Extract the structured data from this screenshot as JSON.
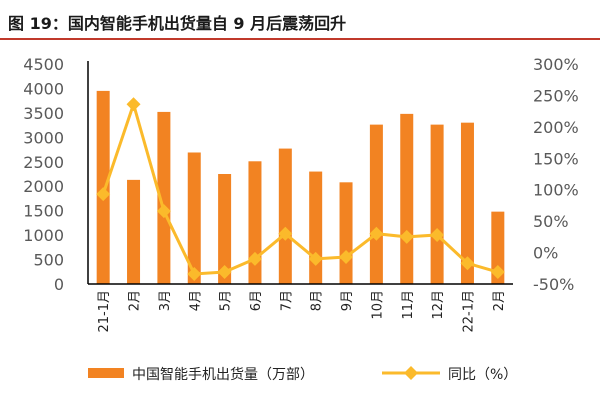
{
  "title": "图 19：国内智能手机出货量自 9 月后震荡回升",
  "chart_data": {
    "type": "bar+line",
    "categories": [
      "21-1月",
      "2月",
      "3月",
      "4月",
      "5月",
      "6月",
      "7月",
      "8月",
      "9月",
      "10月",
      "11月",
      "12月",
      "22-1月",
      "2月"
    ],
    "series": [
      {
        "name": "中国智能手机出货量（万部）",
        "type": "bar",
        "axis": "left",
        "color": "#F28322",
        "values": [
          3950,
          2130,
          3520,
          2690,
          2250,
          2510,
          2770,
          2300,
          2080,
          3260,
          3480,
          3260,
          3300,
          1480
        ]
      },
      {
        "name": "同比（%）",
        "type": "line",
        "axis": "right",
        "color": "#FBBA2B",
        "values": [
          93,
          236,
          66,
          -34,
          -31,
          -10,
          30,
          -10,
          -7,
          30,
          25,
          28,
          -17,
          -31
        ]
      }
    ],
    "left_axis": {
      "ylim": [
        0,
        4500
      ],
      "ticks": [
        "0",
        "500",
        "1000",
        "1500",
        "2000",
        "2500",
        "3000",
        "3500",
        "4000",
        "4500"
      ]
    },
    "right_axis": {
      "ylim": [
        -50,
        300
      ],
      "ticks": [
        "-50%",
        "0%",
        "50%",
        "100%",
        "150%",
        "200%",
        "250%",
        "300%"
      ]
    },
    "grid": false,
    "legend": "bottom"
  }
}
